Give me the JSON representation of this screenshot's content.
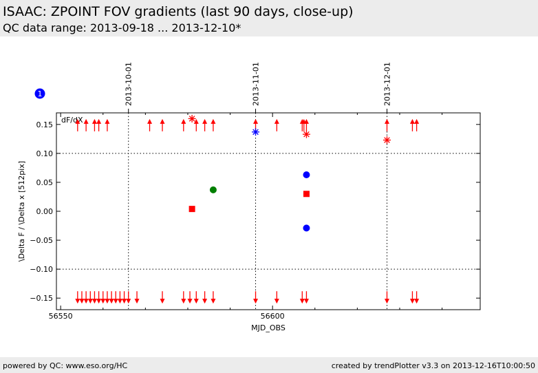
{
  "header": {
    "title": "ISAAC: ZPOINT FOV gradients (last 90 days, close-up)",
    "subtitle": "QC data range: 2013-09-18 ... 2013-12-10*"
  },
  "footer": {
    "left": "powered by QC: www.eso.org/HC",
    "right": "created by trendPlotter v3.3 on 2013-12-16T10:00:50"
  },
  "badge": "1",
  "colors": {
    "red": "#ff0000",
    "blue": "#0000ff",
    "green": "#007f00"
  },
  "chart_data": {
    "type": "scatter",
    "title": "",
    "xlabel": "MJD_OBS",
    "ylabel": "\\Delta F / \\Delta x [512pix]",
    "inset_label": "dF/dX",
    "xlim": [
      56549,
      56649
    ],
    "ylim": [
      -0.17,
      0.17
    ],
    "x_ticks": [
      56550,
      56600
    ],
    "x_tick_labels": [
      "56550",
      "56600"
    ],
    "y_ticks": [
      0.15,
      0.1,
      0.05,
      0.0,
      -0.05,
      -0.1,
      -0.15
    ],
    "y_tick_labels": [
      "0.15",
      "0.10",
      "0.05",
      "0.00",
      "−0.05",
      "−0.10",
      "−0.15"
    ],
    "top_axis": {
      "ticks": [
        56566,
        56596,
        56627
      ],
      "labels": [
        "2013-10-01",
        "2013-11-01",
        "2013-12-01"
      ]
    },
    "reference_lines": [
      0.1,
      -0.1
    ],
    "out_of_range_up": {
      "x": [
        56554,
        56556,
        56558,
        56559,
        56561,
        56571,
        56574,
        56579,
        56582,
        56584,
        56586,
        56596,
        56601,
        56607,
        56607.4,
        56608,
        56627,
        56633,
        56634
      ]
    },
    "out_of_range_down": {
      "x": [
        56554,
        56555,
        56556,
        56557,
        56558,
        56559,
        56560,
        56561,
        56562,
        56563,
        56564,
        56565,
        56566,
        56568,
        56574,
        56579,
        56580.5,
        56582,
        56584,
        56586,
        56596,
        56601,
        56607,
        56608,
        56627,
        56633,
        56634
      ]
    },
    "series": [
      {
        "marker": "asterisk",
        "color": "red",
        "points": [
          [
            56581,
            0.16
          ],
          [
            56608,
            0.133
          ],
          [
            56627,
            0.123
          ]
        ]
      },
      {
        "marker": "asterisk",
        "color": "blue",
        "points": [
          [
            56596,
            0.137
          ]
        ]
      },
      {
        "marker": "circle",
        "color": "blue",
        "points": [
          [
            56608,
            0.063
          ],
          [
            56608,
            -0.029
          ]
        ]
      },
      {
        "marker": "circle",
        "color": "green",
        "points": [
          [
            56586,
            0.037
          ]
        ]
      },
      {
        "marker": "square",
        "color": "red",
        "points": [
          [
            56581,
            0.004
          ],
          [
            56608,
            0.03
          ]
        ]
      }
    ]
  }
}
